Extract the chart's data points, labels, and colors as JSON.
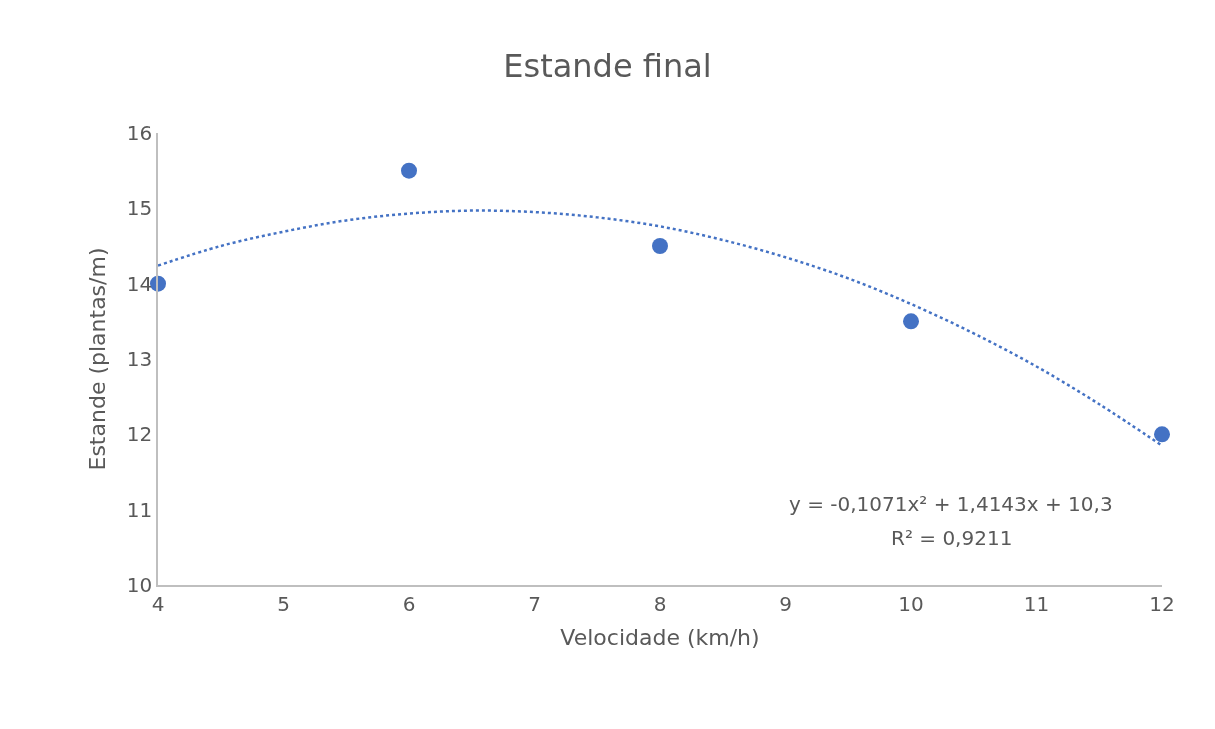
{
  "chart_data": {
    "type": "scatter",
    "title": "Estande final",
    "xlabel": "Velocidade (km/h)",
    "ylabel": "Estande (plantas/m)",
    "x": [
      4,
      6,
      8,
      10,
      12
    ],
    "series": [
      {
        "color": "#4472c4",
        "marker": "circle",
        "values": [
          14,
          15.5,
          14.5,
          13.5,
          12
        ]
      },
      {
        "type": "line",
        "color": "#4472c4",
        "marker": "none",
        "line_style": "dotted",
        "x": [
          4,
          4.5,
          5,
          5.5,
          6,
          6.5,
          7,
          7.5,
          8,
          8.5,
          9,
          9.5,
          10,
          10.5,
          11,
          11.5,
          12
        ],
        "values": [
          14.24,
          14.5,
          14.69,
          14.84,
          14.93,
          14.97,
          14.95,
          14.88,
          14.76,
          14.58,
          14.35,
          14.07,
          13.73,
          13.34,
          12.9,
          12.4,
          11.85
        ]
      }
    ],
    "xlim": [
      4,
      12
    ],
    "xticks": [
      4,
      5,
      6,
      7,
      8,
      9,
      10,
      11,
      12
    ],
    "ylim": [
      10,
      16
    ],
    "yticks": [
      10,
      11,
      12,
      13,
      14,
      15,
      16
    ],
    "grid": false,
    "annotations": [
      "y = -0,1071x² + 1,4143x + 10,3",
      "R² = 0,9211"
    ]
  }
}
